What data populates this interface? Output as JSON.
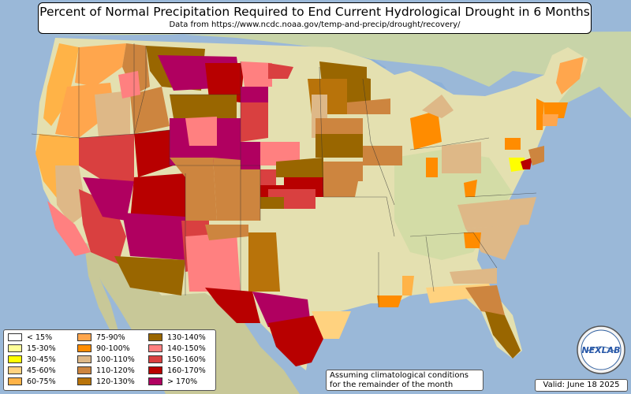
{
  "title": "Percent of Normal Precipitation Required to End Current Hydrological Drought in 6 Months",
  "subtitle": "Data from https://www.ncdc.noaa.gov/temp-and-precip/drought/recovery/",
  "note_line1": "Assuming climatological conditions",
  "note_line2": "for the remainder of the month",
  "valid": "Valid: June 18 2025",
  "logo_text": "NEXLAB",
  "legend": [
    {
      "label": "< 15%",
      "color": "#ffffff"
    },
    {
      "label": "15-30%",
      "color": "#ffff99"
    },
    {
      "label": "30-45%",
      "color": "#ffff00"
    },
    {
      "label": "45-60%",
      "color": "#ffd27f"
    },
    {
      "label": "60-75%",
      "color": "#ffb347"
    },
    {
      "label": "75-90%",
      "color": "#ffa64d"
    },
    {
      "label": "90-100%",
      "color": "#ff8c00"
    },
    {
      "label": "100-110%",
      "color": "#deb887"
    },
    {
      "label": "110-120%",
      "color": "#cd853f"
    },
    {
      "label": "120-130%",
      "color": "#b8730a"
    },
    {
      "label": "130-140%",
      "color": "#996600"
    },
    {
      "label": "140-150%",
      "color": "#ff8080"
    },
    {
      "label": "150-160%",
      "color": "#d94040"
    },
    {
      "label": "160-170%",
      "color": "#b80000"
    },
    {
      "label": "> 170%",
      "color": "#b00060"
    }
  ],
  "colors": {
    "ocean": "#9ab8d8",
    "land": "#e4e0b0",
    "forest": "#bcd0a0",
    "mountain": "#d8caa0"
  }
}
